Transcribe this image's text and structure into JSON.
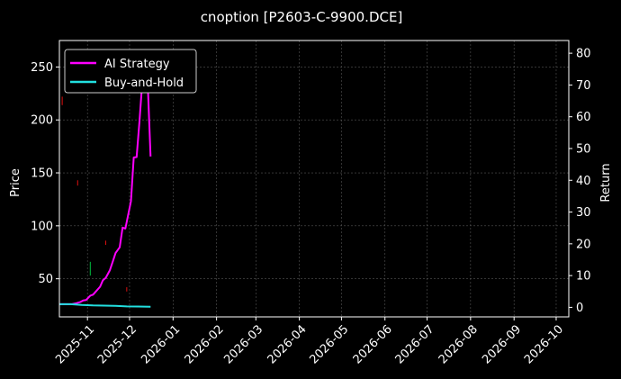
{
  "chart_data": {
    "type": "line",
    "title": "cnoption [P2603-C-9900.DCE]",
    "ylabel_left": "Price",
    "ylabel_right": "Return",
    "grid": true,
    "legend_position": "top-left",
    "x_range": [
      "2025-10-12",
      "2026-10-10"
    ],
    "y_left_range": [
      14,
      275
    ],
    "y_right_range": [
      -3,
      84
    ],
    "x_ticks": [
      "2025-11",
      "2025-12",
      "2026-01",
      "2026-02",
      "2026-03",
      "2026-04",
      "2026-05",
      "2026-06",
      "2026-07",
      "2026-08",
      "2026-09",
      "2026-10"
    ],
    "y_left_ticks": [
      50,
      100,
      150,
      200,
      250
    ],
    "y_right_ticks": [
      0,
      10,
      20,
      30,
      40,
      50,
      60,
      70,
      80
    ],
    "colors": {
      "background": "#000000",
      "ai": "#ff00ff",
      "bh": "#22e0e0",
      "grid": "#555555",
      "up": "#00c040",
      "down": "#e01010"
    },
    "series": [
      {
        "name": "AI Strategy",
        "axis": "right",
        "x": [
          "2025-10-12",
          "2025-10-15",
          "2025-10-18",
          "2025-10-21",
          "2025-10-24",
          "2025-10-27",
          "2025-10-29",
          "2025-10-31",
          "2025-11-03",
          "2025-11-05",
          "2025-11-07",
          "2025-11-10",
          "2025-11-12",
          "2025-11-14",
          "2025-11-17",
          "2025-11-19",
          "2025-11-21",
          "2025-11-24",
          "2025-11-26",
          "2025-11-28",
          "2025-11-30",
          "2025-12-02",
          "2025-12-04",
          "2025-12-06",
          "2025-12-08",
          "2025-12-10",
          "2025-12-12",
          "2025-12-14",
          "2025-12-16"
        ],
        "values": [
          1.0,
          1.0,
          1.0,
          1.0,
          1.3,
          1.7,
          2.2,
          2.3,
          3.7,
          4.0,
          5.0,
          6.5,
          8.5,
          9.3,
          11.7,
          14.4,
          17.1,
          18.9,
          25.1,
          24.8,
          29.1,
          33.4,
          47.2,
          47.3,
          58.3,
          70.5,
          77.0,
          70.0,
          47.5
        ]
      },
      {
        "name": "Buy-and-Hold",
        "axis": "right",
        "x": [
          "2025-10-12",
          "2025-10-20",
          "2025-10-28",
          "2025-11-05",
          "2025-11-13",
          "2025-11-21",
          "2025-11-29",
          "2025-12-07",
          "2025-12-16"
        ],
        "values": [
          1.0,
          1.0,
          0.75,
          0.6,
          0.55,
          0.45,
          0.3,
          0.25,
          0.2
        ]
      }
    ],
    "candles": [
      {
        "x": "2025-10-14",
        "low": 214,
        "high": 222,
        "dir": "down"
      },
      {
        "x": "2025-10-25",
        "low": 138,
        "high": 143,
        "dir": "down"
      },
      {
        "x": "2025-11-03",
        "low": 53,
        "high": 66,
        "dir": "up"
      },
      {
        "x": "2025-11-14",
        "low": 82,
        "high": 86,
        "dir": "down"
      },
      {
        "x": "2025-11-29",
        "low": 38,
        "high": 42,
        "dir": "down"
      }
    ]
  }
}
